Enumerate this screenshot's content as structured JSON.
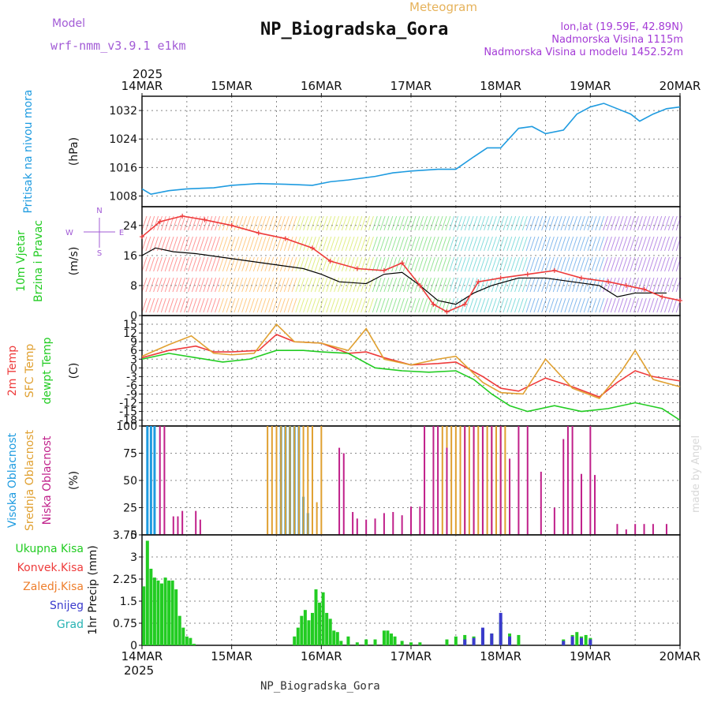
{
  "header": {
    "model_label": "Model",
    "model_name": "wrf-nmm_v3.9.1 e1km",
    "product": "Meteogram",
    "station": "NP_Biogradska_Gora",
    "lonlat": "lon,lat (19.59E, 42.89N)",
    "elevation": "Nadmorska Visina 1115m",
    "model_elevation": "Nadmorska Visina u modelu 1452.52m",
    "year": "2025",
    "footer_station": "NP_Biogradska_Gora",
    "watermark": "made by Angel"
  },
  "colors": {
    "pressure": "#1e9be0",
    "cloud_high": "#1e9be0",
    "cloud_mid": "#e0a030",
    "cloud_low": "#c0208a",
    "t2m": "#ee3b3b",
    "tsfc": "#e0a030",
    "dewpt": "#22cc22",
    "precip_total": "#22cc22",
    "precip_conv": "#ee3b3b",
    "precip_frz": "#ee7f2d",
    "precip_snow": "#3a3acc",
    "precip_grad": "#27b3b3",
    "model_text": "#a25bd6",
    "meteogram_title": "#e6b25a",
    "station_info": "#a43bd6"
  },
  "chart_data": [
    {
      "type": "line",
      "panel": "pressure",
      "title_lines": [
        "Pritisak na nivou mora"
      ],
      "ylabel": "(hPa)",
      "ylim": [
        1005,
        1036
      ],
      "yticks": [
        1008,
        1016,
        1024,
        1032
      ],
      "x_days": [
        "14MAR",
        "15MAR",
        "16MAR",
        "17MAR",
        "18MAR",
        "19MAR",
        "20MAR"
      ],
      "series": [
        {
          "color_key": "pressure",
          "x": [
            0,
            0.1,
            0.3,
            0.5,
            0.8,
            1.0,
            1.3,
            1.6,
            1.9,
            2.1,
            2.3,
            2.6,
            2.8,
            3.0,
            3.3,
            3.5,
            3.7,
            3.85,
            4.0,
            4.2,
            4.35,
            4.5,
            4.7,
            4.85,
            5.0,
            5.15,
            5.3,
            5.45,
            5.55,
            5.7,
            5.85,
            6.0
          ],
          "y": [
            1010,
            1008.5,
            1009.5,
            1010,
            1010.3,
            1011,
            1011.5,
            1011.3,
            1011,
            1012,
            1012.5,
            1013.5,
            1014.5,
            1015,
            1015.5,
            1015.5,
            1019,
            1021.5,
            1021.5,
            1027,
            1027.5,
            1025.5,
            1026.5,
            1031,
            1033,
            1034,
            1032.5,
            1031,
            1029,
            1031,
            1032.5,
            1033
          ]
        }
      ]
    },
    {
      "type": "line",
      "panel": "wind",
      "title_lines": [
        "10m Vjetar",
        "Brzina i Pravac"
      ],
      "ylabel": "(m/s)",
      "ylim": [
        0,
        29
      ],
      "yticks": [
        0,
        8,
        16,
        24
      ],
      "dir_legend": [
        "N",
        "E",
        "S",
        "W"
      ],
      "series": [
        {
          "name": "mean",
          "color": "#000000",
          "x": [
            0,
            0.15,
            0.35,
            0.6,
            0.9,
            1.2,
            1.5,
            1.8,
            2.0,
            2.2,
            2.5,
            2.7,
            2.9,
            3.1,
            3.3,
            3.5,
            3.7,
            3.9,
            4.2,
            4.5,
            4.8,
            5.1,
            5.3,
            5.5,
            5.7,
            5.85
          ],
          "y": [
            16,
            18,
            17,
            16.5,
            15.5,
            14.5,
            13.5,
            12.5,
            11,
            9,
            8.5,
            11,
            11.5,
            8,
            4,
            3,
            6,
            8,
            10,
            10,
            9,
            8,
            5,
            6,
            6,
            6
          ]
        },
        {
          "name": "gust",
          "color": "#ee3b3b",
          "x": [
            0,
            0.2,
            0.45,
            0.7,
            1.0,
            1.3,
            1.6,
            1.9,
            2.1,
            2.4,
            2.7,
            2.9,
            3.1,
            3.25,
            3.4,
            3.6,
            3.75,
            4.0,
            4.3,
            4.6,
            4.9,
            5.2,
            5.4,
            5.6,
            5.8,
            6.0
          ],
          "y": [
            21,
            25,
            26.5,
            25.5,
            24,
            22,
            20.5,
            18,
            14.5,
            12.5,
            12,
            14,
            8,
            3,
            1,
            3,
            9,
            10,
            11,
            12,
            10,
            9,
            8,
            7,
            5,
            4
          ]
        }
      ]
    },
    {
      "type": "line",
      "panel": "temperature",
      "title_lines": [
        "2m Temp",
        "SFC Temp",
        "dewpt Temp"
      ],
      "ylabel": "(C)",
      "ylim": [
        -20,
        18
      ],
      "yticks": [
        -18,
        -15,
        -12,
        -9,
        -6,
        -3,
        0,
        3,
        6,
        9,
        12,
        15
      ],
      "series": [
        {
          "name": "2m Temp",
          "color_key": "t2m",
          "x": [
            0,
            0.3,
            0.6,
            0.8,
            1.0,
            1.3,
            1.5,
            1.7,
            2.0,
            2.3,
            2.5,
            2.7,
            3.0,
            3.3,
            3.5,
            3.8,
            4.0,
            4.2,
            4.5,
            4.8,
            5.1,
            5.3,
            5.5,
            5.7,
            6.0
          ],
          "y": [
            3.5,
            6,
            7.5,
            5.5,
            5.5,
            6,
            11.5,
            9,
            8.5,
            5,
            5.5,
            3.5,
            1,
            1.5,
            2,
            -3,
            -7,
            -8,
            -3.5,
            -6.5,
            -10,
            -5,
            -1,
            -3,
            -4.5
          ]
        },
        {
          "name": "SFC Temp",
          "color_key": "tsfc",
          "x": [
            0,
            0.3,
            0.55,
            0.8,
            1.0,
            1.25,
            1.5,
            1.7,
            2.0,
            2.3,
            2.5,
            2.7,
            3.0,
            3.3,
            3.5,
            3.8,
            4.0,
            4.25,
            4.5,
            4.8,
            5.1,
            5.35,
            5.5,
            5.7,
            6.0
          ],
          "y": [
            4,
            8,
            11,
            5,
            4.5,
            5,
            15,
            9,
            8.5,
            6,
            13.5,
            3,
            1,
            3,
            4,
            -5,
            -8.5,
            -9,
            3,
            -7,
            -10.5,
            -1,
            6,
            -4,
            -6.5
          ]
        },
        {
          "name": "dewpt Temp",
          "color_key": "dewpt",
          "x": [
            0,
            0.3,
            0.6,
            0.9,
            1.2,
            1.5,
            1.8,
            2.0,
            2.3,
            2.6,
            2.9,
            3.2,
            3.5,
            3.7,
            3.9,
            4.1,
            4.3,
            4.6,
            4.9,
            5.2,
            5.5,
            5.8,
            6.0
          ],
          "y": [
            3,
            5,
            3.5,
            2,
            3,
            6,
            6,
            5.5,
            5,
            0,
            -1,
            -1.5,
            -1,
            -4,
            -9,
            -13,
            -15,
            -13,
            -15,
            -14,
            -12,
            -14,
            -18
          ]
        }
      ]
    },
    {
      "type": "bar",
      "panel": "clouds",
      "title_lines": [
        "Visoka Oblacnost",
        "Srednja Oblacnost",
        "Niska Oblacnost"
      ],
      "ylabel": "(%)",
      "ylim": [
        0,
        100
      ],
      "yticks": [
        0,
        25,
        50,
        75,
        100
      ],
      "series": [
        {
          "name": "Visoka Oblacnost",
          "color_key": "cloud_high",
          "x": [
            0.06,
            0.1,
            0.14,
            1.55,
            1.6,
            1.65,
            1.7,
            1.75,
            1.8,
            1.85
          ],
          "values": [
            100,
            100,
            100,
            100,
            100,
            100,
            100,
            100,
            35,
            20
          ]
        },
        {
          "name": "Srednja Oblacnost",
          "color_key": "cloud_mid",
          "x": [
            1.4,
            1.45,
            1.5,
            1.55,
            1.6,
            1.65,
            1.7,
            1.75,
            1.8,
            1.85,
            1.9,
            1.95,
            2.0,
            3.35,
            3.4,
            3.45,
            3.5,
            3.55,
            3.6,
            3.65,
            3.7,
            3.75,
            3.8,
            3.85,
            3.9,
            3.95,
            4.0,
            4.05
          ],
          "values": [
            100,
            100,
            100,
            100,
            100,
            100,
            100,
            100,
            100,
            100,
            100,
            30,
            100,
            100,
            100,
            100,
            100,
            100,
            100,
            100,
            100,
            100,
            100,
            100,
            100,
            100,
            100,
            100
          ]
        },
        {
          "name": "Niska Oblacnost",
          "color_key": "cloud_low",
          "x": [
            0.2,
            0.25,
            0.35,
            0.4,
            0.45,
            0.6,
            0.65,
            2.2,
            2.25,
            2.35,
            2.4,
            2.5,
            2.6,
            2.7,
            2.8,
            2.9,
            3.0,
            3.1,
            3.15,
            3.25,
            3.3,
            3.4,
            3.6,
            3.7,
            3.8,
            3.9,
            4.0,
            4.1,
            4.2,
            4.3,
            4.45,
            4.6,
            4.7,
            4.75,
            4.8,
            4.9,
            5.0,
            5.05,
            5.3,
            5.4,
            5.5,
            5.6,
            5.7,
            5.85
          ],
          "values": [
            100,
            100,
            17,
            17,
            22,
            22,
            14,
            80,
            75,
            21,
            15,
            14,
            15,
            20,
            21,
            18,
            26,
            26,
            100,
            100,
            100,
            80,
            100,
            100,
            100,
            100,
            100,
            70,
            100,
            100,
            58,
            25,
            88,
            100,
            100,
            56,
            100,
            55,
            10,
            5,
            10,
            10,
            10,
            10
          ]
        }
      ]
    },
    {
      "type": "bar",
      "panel": "precip",
      "title_lines": [
        "Ukupna Kisa",
        "Konvek.Kisa",
        "Zaledj.Kisa",
        "Snijeg",
        "Grad"
      ],
      "ylabel": "1hr Precip (mm)",
      "ylim": [
        0,
        3.75
      ],
      "yticks": [
        0,
        0.75,
        1.5,
        2.25,
        3,
        3.75
      ],
      "ytick_labels": [
        "0",
        "0.75",
        "1.5",
        "2.25",
        "3",
        "3.75"
      ],
      "series": [
        {
          "name": "Ukupna Kisa",
          "color_key": "precip_total",
          "x": [
            0.02,
            0.06,
            0.1,
            0.14,
            0.18,
            0.22,
            0.26,
            0.3,
            0.34,
            0.38,
            0.42,
            0.46,
            0.5,
            0.54,
            0.58,
            1.7,
            1.74,
            1.78,
            1.82,
            1.86,
            1.9,
            1.94,
            1.98,
            2.02,
            2.06,
            2.1,
            2.14,
            2.18,
            2.22,
            2.3,
            2.4,
            2.5,
            2.6,
            2.7,
            2.74,
            2.78,
            2.82,
            2.9,
            3.0,
            3.1,
            3.4,
            3.5,
            3.6,
            3.7,
            3.8,
            3.9,
            4.0,
            4.1,
            4.2,
            4.7,
            4.8,
            4.85,
            4.9,
            4.95,
            5.0
          ],
          "values": [
            2.0,
            3.55,
            2.6,
            2.3,
            2.2,
            2.1,
            2.3,
            2.2,
            2.2,
            1.9,
            1.0,
            0.6,
            0.3,
            0.25,
            0.05,
            0.3,
            0.6,
            1.0,
            1.2,
            0.85,
            1.1,
            1.9,
            1.45,
            1.8,
            1.1,
            0.9,
            0.5,
            0.45,
            0.15,
            0.3,
            0.1,
            0.2,
            0.2,
            0.5,
            0.5,
            0.4,
            0.3,
            0.15,
            0.1,
            0.1,
            0.2,
            0.3,
            0.35,
            0.3,
            0.55,
            0.4,
            0.8,
            0.4,
            0.35,
            0.2,
            0.35,
            0.45,
            0.3,
            0.35,
            0.25
          ]
        },
        {
          "name": "Snijeg",
          "color_key": "precip_snow",
          "x": [
            3.6,
            3.7,
            3.8,
            3.9,
            4.0,
            4.1,
            4.7,
            4.8,
            4.9,
            5.0
          ],
          "values": [
            0.2,
            0.25,
            0.6,
            0.4,
            1.1,
            0.3,
            0.15,
            0.3,
            0.25,
            0.2
          ]
        }
      ]
    }
  ]
}
